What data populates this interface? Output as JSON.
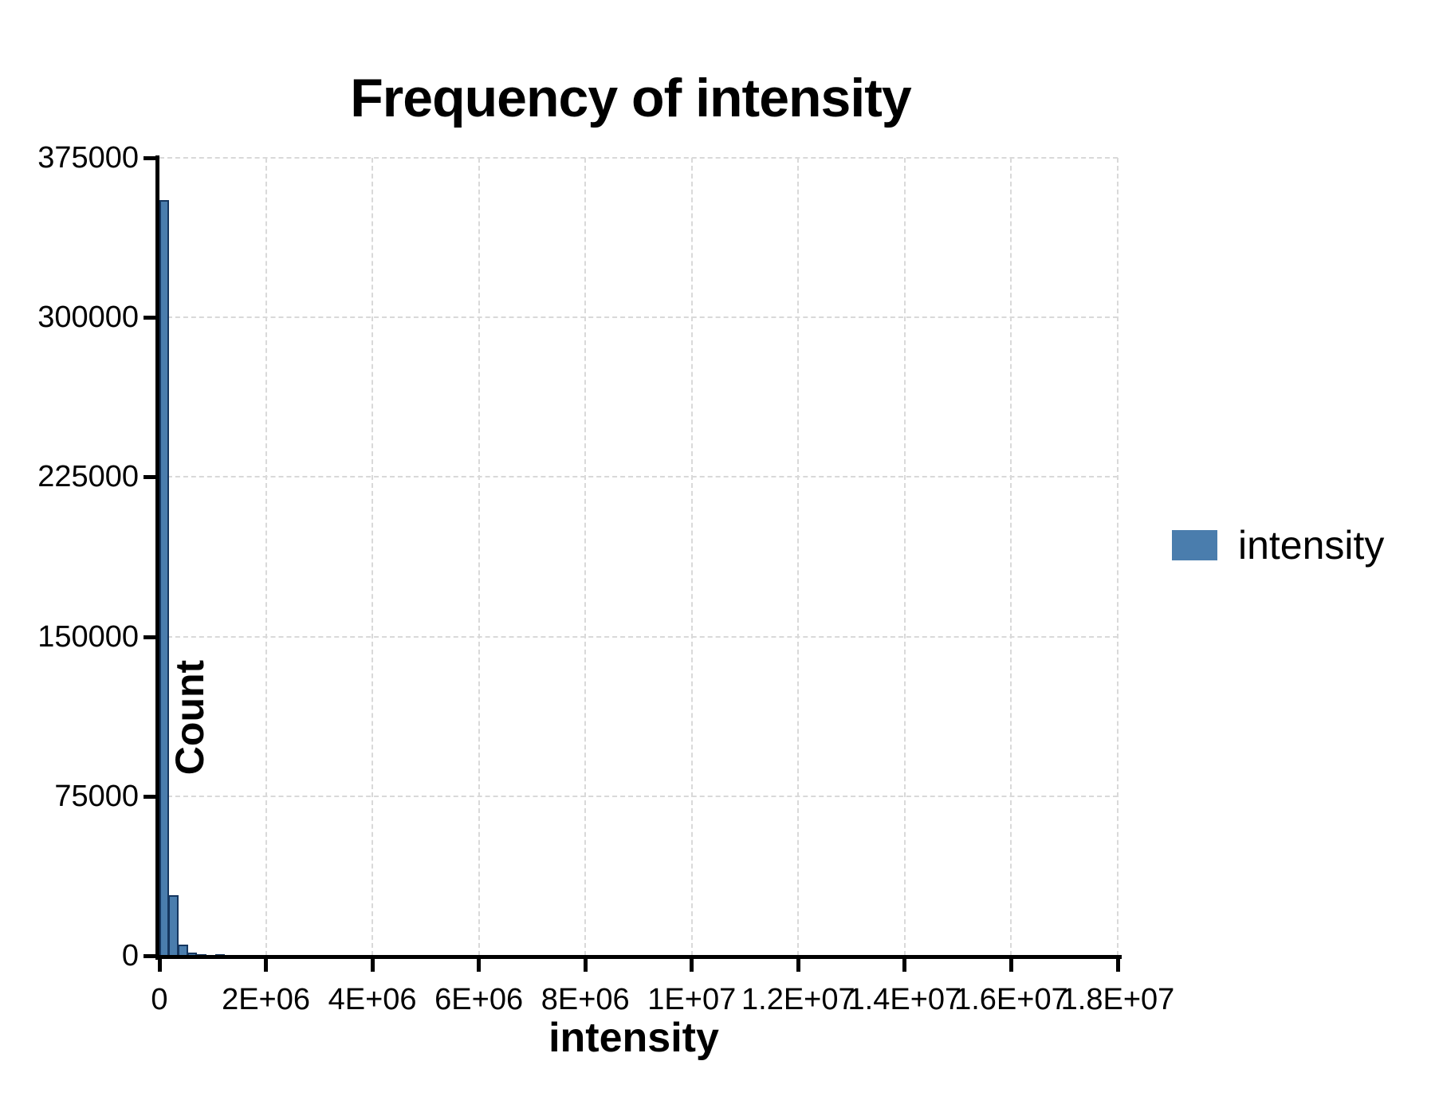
{
  "chart_data": {
    "type": "bar",
    "subtype": "histogram",
    "title": "Frequency of intensity",
    "xlabel": "intensity",
    "ylabel": "Count",
    "legend": {
      "label": "intensity",
      "position": "right"
    },
    "grid": "dashed",
    "x_axis": {
      "min": 0,
      "max": 18000000,
      "tick_interval": 2000000,
      "tick_values": [
        0,
        2000000,
        4000000,
        6000000,
        8000000,
        10000000,
        12000000,
        14000000,
        16000000,
        18000000
      ],
      "tick_labels": [
        "0",
        "2E+06",
        "4E+06",
        "6E+06",
        "8E+06",
        "1E+07",
        "1.2E+07",
        "1.4E+07",
        "1.6E+07",
        "1.8E+07"
      ]
    },
    "y_axis": {
      "min": 0,
      "max": 375000,
      "tick_interval": 75000,
      "tick_values": [
        0,
        75000,
        150000,
        225000,
        300000,
        375000
      ],
      "tick_labels": [
        "0",
        "75000",
        "150000",
        "225000",
        "300000",
        "375000"
      ]
    },
    "bin_width": 175000,
    "bins": [
      {
        "start": 0,
        "count": 355000
      },
      {
        "start": 175000,
        "count": 28500
      },
      {
        "start": 350000,
        "count": 5300
      },
      {
        "start": 525000,
        "count": 1500
      },
      {
        "start": 700000,
        "count": 700
      },
      {
        "start": 875000,
        "count": 0
      },
      {
        "start": 1050000,
        "count": 250
      }
    ],
    "colors": {
      "bar_fill": "#4A7DAD",
      "bar_edge": "#15365F",
      "grid": "#D9D9D9",
      "axis": "#000000",
      "text": "#000000"
    }
  }
}
